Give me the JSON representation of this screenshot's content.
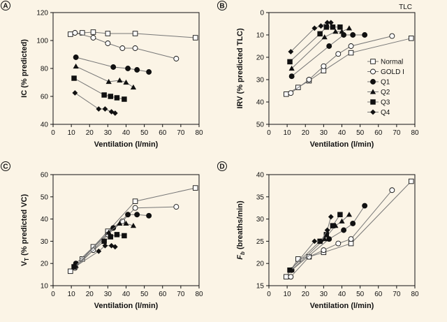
{
  "chart_data": [
    {
      "panel": "A",
      "type": "line",
      "xlabel": "Ventilation (l/min)",
      "ylabel": "IC (% predicted)",
      "xlim": [
        0,
        80
      ],
      "ylim": [
        40,
        120
      ],
      "xticks": [
        "0",
        "10",
        "20",
        "30",
        "40",
        "50",
        "60",
        "70",
        "80"
      ],
      "yticks": [
        "40",
        "60",
        "80",
        "100",
        "120"
      ],
      "series": [
        {
          "name": "Normal",
          "x": [
            9.5,
            16,
            22,
            30,
            45,
            78
          ],
          "y": [
            104.5,
            105.5,
            106,
            105,
            105,
            102
          ]
        },
        {
          "name": "GOLD I",
          "x": [
            12,
            22,
            30,
            38,
            45,
            67.5
          ],
          "y": [
            105.5,
            102,
            98,
            94.5,
            94.5,
            87
          ]
        },
        {
          "name": "Q1",
          "x": [
            12.5,
            33,
            41,
            46,
            52.5
          ],
          "y": [
            88,
            81,
            80,
            79,
            77.5
          ]
        },
        {
          "name": "Q2",
          "x": [
            12.5,
            30.5,
            36.5,
            40,
            44
          ],
          "y": [
            81.5,
            70.5,
            71.5,
            70,
            66.5
          ]
        },
        {
          "name": "Q3",
          "x": [
            11.5,
            28,
            31.5,
            35,
            39
          ],
          "y": [
            73,
            61,
            60,
            59,
            58
          ]
        },
        {
          "name": "Q4",
          "x": [
            12,
            25,
            28.5,
            32,
            34
          ],
          "y": [
            62.5,
            51,
            51,
            49,
            48
          ]
        }
      ]
    },
    {
      "panel": "B",
      "type": "line",
      "annotation": "TLC",
      "xlabel": "Ventilation (l/min)",
      "ylabel": "IRV (% predicted TLC)",
      "xlim": [
        0,
        80
      ],
      "ylim": [
        50,
        0
      ],
      "xticks": [
        "0",
        "10",
        "20",
        "30",
        "40",
        "50",
        "60",
        "70",
        "80"
      ],
      "yticks": [
        "0",
        "10",
        "20",
        "30",
        "40",
        "50"
      ],
      "series": [
        {
          "name": "Normal",
          "x": [
            9.5,
            16,
            22,
            30,
            45,
            78
          ],
          "y": [
            36.5,
            33.5,
            30.5,
            26,
            18,
            11.5
          ]
        },
        {
          "name": "GOLD I",
          "x": [
            12,
            22,
            30,
            38,
            45,
            67.5
          ],
          "y": [
            36,
            30,
            24,
            18.5,
            15,
            10.5
          ]
        },
        {
          "name": "Q1",
          "x": [
            12.5,
            33,
            41,
            46,
            52.5
          ],
          "y": [
            28.5,
            15,
            10,
            10,
            10
          ]
        },
        {
          "name": "Q2",
          "x": [
            12.5,
            30.5,
            36.5,
            40,
            44
          ],
          "y": [
            25,
            11,
            8.5,
            8.5,
            7
          ]
        },
        {
          "name": "Q3",
          "x": [
            11.5,
            28,
            31.5,
            35,
            39
          ],
          "y": [
            22,
            9.5,
            6.5,
            6.5,
            6.5
          ]
        },
        {
          "name": "Q4",
          "x": [
            12,
            25,
            28.5,
            32,
            34
          ],
          "y": [
            17.5,
            7,
            6,
            4.5,
            4.5
          ]
        }
      ]
    },
    {
      "panel": "C",
      "type": "line",
      "xlabel": "Ventilation (l/min)",
      "ylabel": "VT (% predicted VC)",
      "xlim": [
        0,
        80
      ],
      "ylim": [
        10,
        60
      ],
      "xticks": [
        "0",
        "10",
        "20",
        "30",
        "40",
        "50",
        "60",
        "70",
        "80"
      ],
      "yticks": [
        "10",
        "20",
        "30",
        "40",
        "50",
        "60"
      ],
      "series": [
        {
          "name": "Normal",
          "x": [
            9.5,
            16,
            22,
            30,
            45,
            78
          ],
          "y": [
            16.5,
            22,
            27.5,
            34.5,
            48,
            54
          ]
        },
        {
          "name": "GOLD I",
          "x": [
            12,
            22,
            30,
            38,
            45,
            67.5
          ],
          "y": [
            18,
            26,
            33,
            39,
            45,
            45.5
          ]
        },
        {
          "name": "Q1",
          "x": [
            12.5,
            33,
            41,
            46,
            52.5
          ],
          "y": [
            20,
            36,
            42,
            42,
            41.5
          ]
        },
        {
          "name": "Q2",
          "x": [
            12.5,
            30.5,
            36.5,
            40,
            44
          ],
          "y": [
            19,
            34,
            38,
            38,
            37
          ]
        },
        {
          "name": "Q3",
          "x": [
            11.5,
            28,
            31.5,
            35,
            39
          ],
          "y": [
            18.5,
            30,
            32,
            33,
            32.5
          ]
        },
        {
          "name": "Q4",
          "x": [
            12,
            25,
            28.5,
            32,
            34
          ],
          "y": [
            18.5,
            25.5,
            28,
            28,
            27.5
          ]
        }
      ]
    },
    {
      "panel": "D",
      "type": "line",
      "xlabel": "Ventilation (l/min)",
      "ylabel": "Fb (breaths/min)",
      "xlim": [
        0,
        80
      ],
      "ylim": [
        15,
        40
      ],
      "xticks": [
        "0",
        "10",
        "20",
        "30",
        "40",
        "50",
        "60",
        "70",
        "80"
      ],
      "yticks": [
        "15",
        "20",
        "25",
        "30",
        "35",
        "40"
      ],
      "series": [
        {
          "name": "Normal",
          "x": [
            9.5,
            16,
            22,
            30,
            45,
            78
          ],
          "y": [
            17,
            21,
            21.5,
            22.5,
            24.5,
            38.5
          ]
        },
        {
          "name": "GOLD I",
          "x": [
            12,
            22,
            30,
            38,
            45,
            67.5
          ],
          "y": [
            17,
            21.5,
            23,
            24.5,
            25.5,
            36.5
          ]
        },
        {
          "name": "Q1",
          "x": [
            12.5,
            33,
            41,
            46,
            52.5
          ],
          "y": [
            18.5,
            25.5,
            27.5,
            29,
            33
          ]
        },
        {
          "name": "Q2",
          "x": [
            12.5,
            30.5,
            36.5,
            40,
            44
          ],
          "y": [
            18.5,
            25.5,
            28.5,
            29.5,
            31
          ]
        },
        {
          "name": "Q3",
          "x": [
            11.5,
            28,
            31.5,
            35,
            39
          ],
          "y": [
            18.5,
            25,
            26.5,
            28.5,
            31
          ]
        },
        {
          "name": "Q4",
          "x": [
            12,
            25,
            28.5,
            32,
            34
          ],
          "y": [
            18.5,
            25,
            25,
            27.5,
            30.5
          ]
        }
      ]
    }
  ],
  "legend": {
    "placement": "inside-right of panel B",
    "entries": [
      {
        "name": "Normal",
        "marker": "open-square"
      },
      {
        "name": "GOLD I",
        "marker": "open-circle"
      },
      {
        "name": "Q1",
        "marker": "filled-circle"
      },
      {
        "name": "Q2",
        "marker": "filled-triangle"
      },
      {
        "name": "Q3",
        "marker": "filled-square"
      },
      {
        "name": "Q4",
        "marker": "filled-diamond"
      }
    ]
  },
  "colors": {
    "background": "#fbf4e6",
    "ink": "#111111",
    "line": "#777777",
    "open_fill": "#ffffff"
  }
}
